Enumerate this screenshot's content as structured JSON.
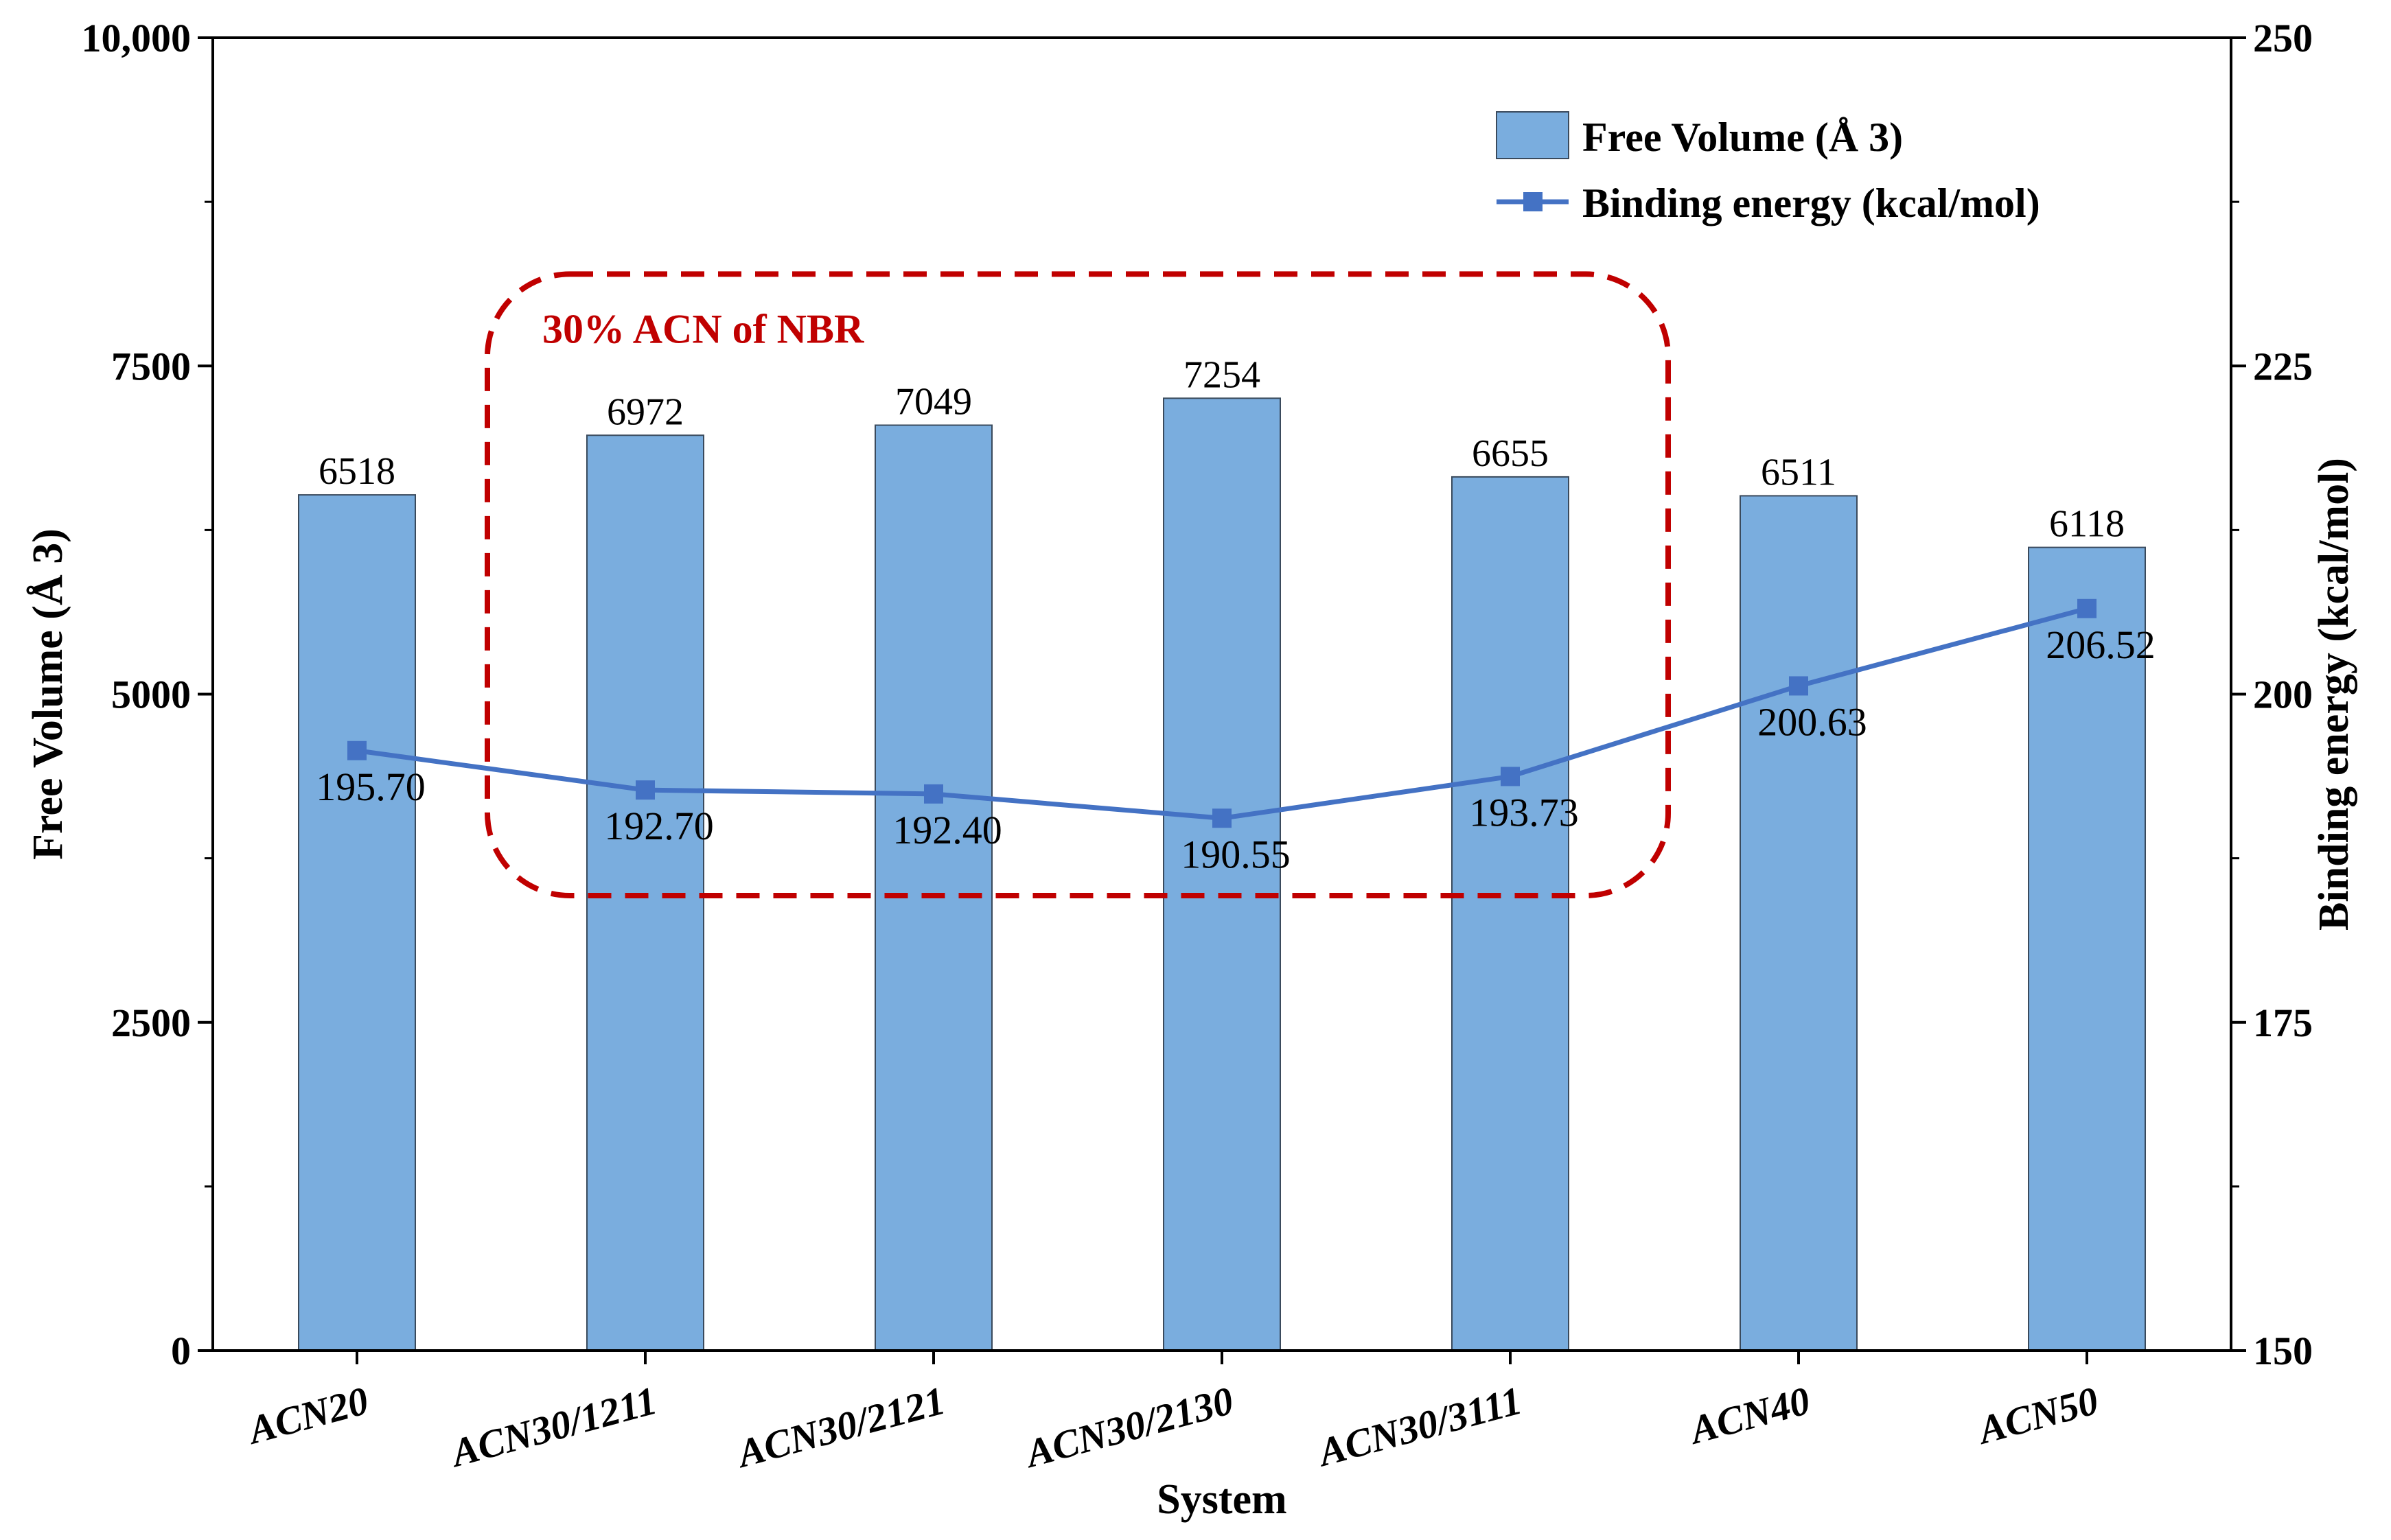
{
  "chart_data": {
    "type": "bar",
    "categories": [
      "ACN20",
      "ACN30/1211",
      "ACN30/2121",
      "ACN30/2130",
      "ACN30/3111",
      "ACN40",
      "ACN50"
    ],
    "series": [
      {
        "name": "Free Volume (Å 3)",
        "type": "bar",
        "axis": "left",
        "values": [
          6518,
          6972,
          7049,
          7254,
          6655,
          6511,
          6118
        ],
        "labels": [
          "6518",
          "6972",
          "7049",
          "7254",
          "6655",
          "6511",
          "6118"
        ],
        "color": "#7aadde"
      },
      {
        "name": "Binding energy (kcal/mol)",
        "type": "line",
        "axis": "right",
        "values": [
          195.7,
          192.7,
          192.4,
          190.55,
          193.73,
          200.63,
          206.52
        ],
        "labels": [
          "195.70",
          "192.70",
          "192.40",
          "190.55",
          "193.73",
          "200.63",
          "206.52"
        ],
        "color": "#4472c4"
      }
    ],
    "xlabel": "System",
    "ylabel_left": "Free Volume (Å 3)",
    "ylabel_right": "Binding energy (kcal/mol)",
    "ylim_left": [
      0,
      10000
    ],
    "ylim_right": [
      150,
      250
    ],
    "yticks_left": [
      {
        "value": 0,
        "label": "0"
      },
      {
        "value": 2500,
        "label": "2500"
      },
      {
        "value": 5000,
        "label": "5000"
      },
      {
        "value": 7500,
        "label": "7500"
      },
      {
        "value": 10000,
        "label": "10,000"
      }
    ],
    "yticks_right": [
      {
        "value": 150,
        "label": "150"
      },
      {
        "value": 175,
        "label": "175"
      },
      {
        "value": 200,
        "label": "200"
      },
      {
        "value": 225,
        "label": "225"
      },
      {
        "value": 250,
        "label": "250"
      }
    ],
    "legend_position": "top-right",
    "grid": false,
    "annotation": {
      "text": "30% ACN of NBR",
      "color": "#c00000",
      "encloses": [
        "ACN30/1211",
        "ACN30/2121",
        "ACN30/2130",
        "ACN30/3111"
      ]
    }
  }
}
